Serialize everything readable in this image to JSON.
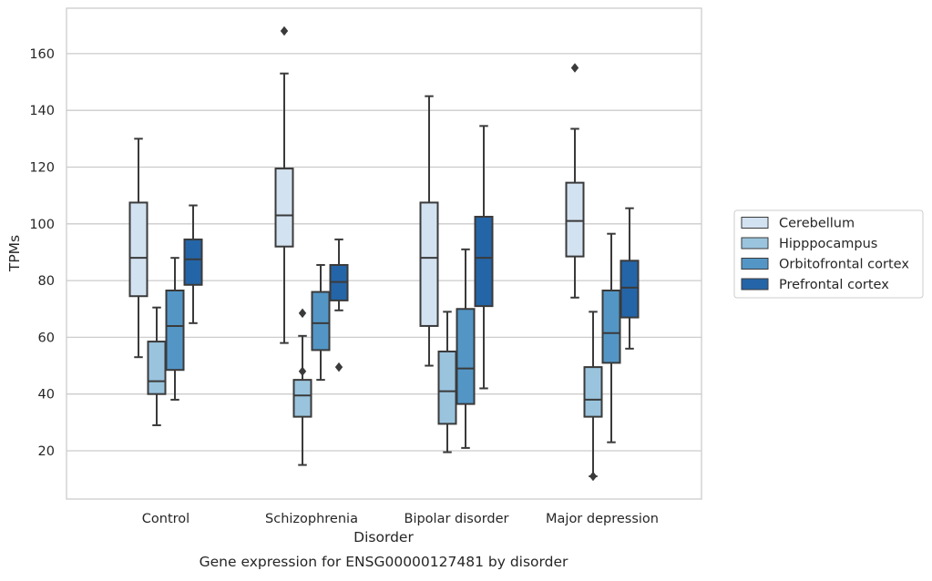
{
  "chart_data": {
    "type": "box",
    "caption": "Gene expression for ENSG00000127481 by disorder",
    "xlabel": "Disorder",
    "ylabel": "TPMs",
    "ylim": [
      3,
      176
    ],
    "yticks": [
      20,
      40,
      60,
      80,
      100,
      120,
      140,
      160
    ],
    "grid": "horizontal",
    "legend_position": "right",
    "categories": [
      "Control",
      "Schizophrenia",
      "Bipolar disorder",
      "Major depression"
    ],
    "series": [
      {
        "name": "Cerebellum",
        "color": "#d3e2f1",
        "boxes": [
          {
            "whisker_low": 53,
            "q1": 74.5,
            "median": 88,
            "q3": 107.5,
            "whisker_high": 130,
            "outliers": []
          },
          {
            "whisker_low": 58,
            "q1": 92,
            "median": 103,
            "q3": 119.5,
            "whisker_high": 153,
            "outliers": [
              168
            ]
          },
          {
            "whisker_low": 50,
            "q1": 64,
            "median": 88,
            "q3": 107.5,
            "whisker_high": 145,
            "outliers": []
          },
          {
            "whisker_low": 74,
            "q1": 88.5,
            "median": 101,
            "q3": 114.5,
            "whisker_high": 133.5,
            "outliers": [
              155
            ]
          }
        ]
      },
      {
        "name": "Hipppocampus",
        "color": "#9ac4de",
        "boxes": [
          {
            "whisker_low": 29,
            "q1": 40,
            "median": 44.5,
            "q3": 58.5,
            "whisker_high": 70.5,
            "outliers": []
          },
          {
            "whisker_low": 15,
            "q1": 32,
            "median": 39.5,
            "q3": 45,
            "whisker_high": 60.5,
            "outliers": [
              48,
              68.5
            ]
          },
          {
            "whisker_low": 19.5,
            "q1": 29.5,
            "median": 41,
            "q3": 55,
            "whisker_high": 69,
            "outliers": []
          },
          {
            "whisker_low": 11,
            "q1": 32,
            "median": 38,
            "q3": 49.5,
            "whisker_high": 69,
            "outliers": [
              11
            ]
          }
        ]
      },
      {
        "name": "Orbitofrontal cortex",
        "color": "#5396c6",
        "boxes": [
          {
            "whisker_low": 38,
            "q1": 48.5,
            "median": 64,
            "q3": 76.5,
            "whisker_high": 88,
            "outliers": []
          },
          {
            "whisker_low": 45,
            "q1": 55.5,
            "median": 65,
            "q3": 76,
            "whisker_high": 85.5,
            "outliers": []
          },
          {
            "whisker_low": 21,
            "q1": 36.5,
            "median": 49,
            "q3": 70,
            "whisker_high": 91,
            "outliers": []
          },
          {
            "whisker_low": 23,
            "q1": 51,
            "median": 61.5,
            "q3": 76.5,
            "whisker_high": 96.5,
            "outliers": []
          }
        ]
      },
      {
        "name": "Prefrontal cortex",
        "color": "#2465a8",
        "boxes": [
          {
            "whisker_low": 65,
            "q1": 78.5,
            "median": 87.5,
            "q3": 94.5,
            "whisker_high": 106.5,
            "outliers": []
          },
          {
            "whisker_low": 69.5,
            "q1": 73,
            "median": 79.5,
            "q3": 85.5,
            "whisker_high": 94.5,
            "outliers": [
              49.5
            ]
          },
          {
            "whisker_low": 42,
            "q1": 71,
            "median": 88,
            "q3": 102.5,
            "whisker_high": 134.5,
            "outliers": []
          },
          {
            "whisker_low": 56,
            "q1": 67,
            "median": 77.5,
            "q3": 87,
            "whisker_high": 105.5,
            "outliers": []
          }
        ]
      }
    ]
  }
}
